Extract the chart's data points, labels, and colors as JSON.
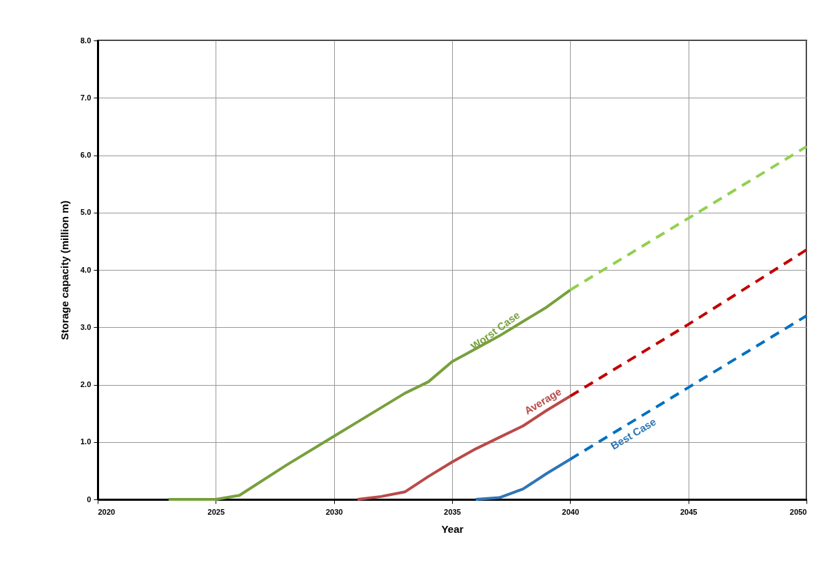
{
  "chart_data": {
    "type": "line",
    "xlabel": "Year",
    "ylabel": "Storage capacity (million m)",
    "xlim": [
      2020,
      2050
    ],
    "xticks": [
      2020,
      2025,
      2030,
      2035,
      2040,
      2045,
      2050
    ],
    "ylim": [
      0,
      8
    ],
    "yticks": [
      0,
      {
        "value": 1,
        "label": "1.0"
      },
      {
        "value": 2,
        "label": "2.0"
      },
      {
        "value": 3,
        "label": "3.0"
      },
      {
        "value": 4,
        "label": "4.0"
      },
      {
        "value": 5,
        "label": "5.0"
      },
      {
        "value": 6,
        "label": "6.0"
      },
      {
        "value": 7,
        "label": "7.0"
      },
      {
        "value": 8,
        "label": "8.0"
      }
    ],
    "grid": true,
    "marker": "none",
    "series": [
      {
        "name": "Worst Case",
        "color": "#77a03c",
        "line_style": "solid",
        "x": [
          2023,
          2025,
          2026,
          2028,
          2030,
          2033,
          2034,
          2035,
          2037,
          2038,
          2039,
          2040
        ],
        "values": [
          0,
          0,
          0.07,
          0.6,
          1.1,
          1.85,
          2.05,
          2.4,
          2.85,
          3.1,
          3.35,
          3.65
        ]
      },
      {
        "color": "#92d050",
        "line_style": "dashed",
        "x": [
          2040,
          2045,
          2050
        ],
        "values": [
          3.65,
          4.9,
          6.15
        ]
      },
      {
        "name": "Average",
        "color": "#b94a48",
        "line_style": "solid",
        "x": [
          2031,
          2032,
          2033,
          2034,
          2035,
          2036,
          2037,
          2038,
          2039,
          2040
        ],
        "values": [
          0,
          0.05,
          0.13,
          0.4,
          0.65,
          0.88,
          1.08,
          1.28,
          1.55,
          1.8
        ]
      },
      {
        "color": "#c00000",
        "line_style": "dashed",
        "x": [
          2040,
          2045,
          2050
        ],
        "values": [
          1.8,
          3.05,
          4.35
        ]
      },
      {
        "name": "Best Case",
        "color": "#2e75b6",
        "line_style": "solid",
        "x": [
          2036,
          2037,
          2038,
          2039,
          2040
        ],
        "values": [
          0,
          0.03,
          0.18,
          0.45,
          0.7
        ]
      },
      {
        "color": "#0070c0",
        "line_style": "dashed",
        "x": [
          2040,
          2045,
          2050
        ],
        "values": [
          0.7,
          1.95,
          3.2
        ]
      }
    ]
  }
}
